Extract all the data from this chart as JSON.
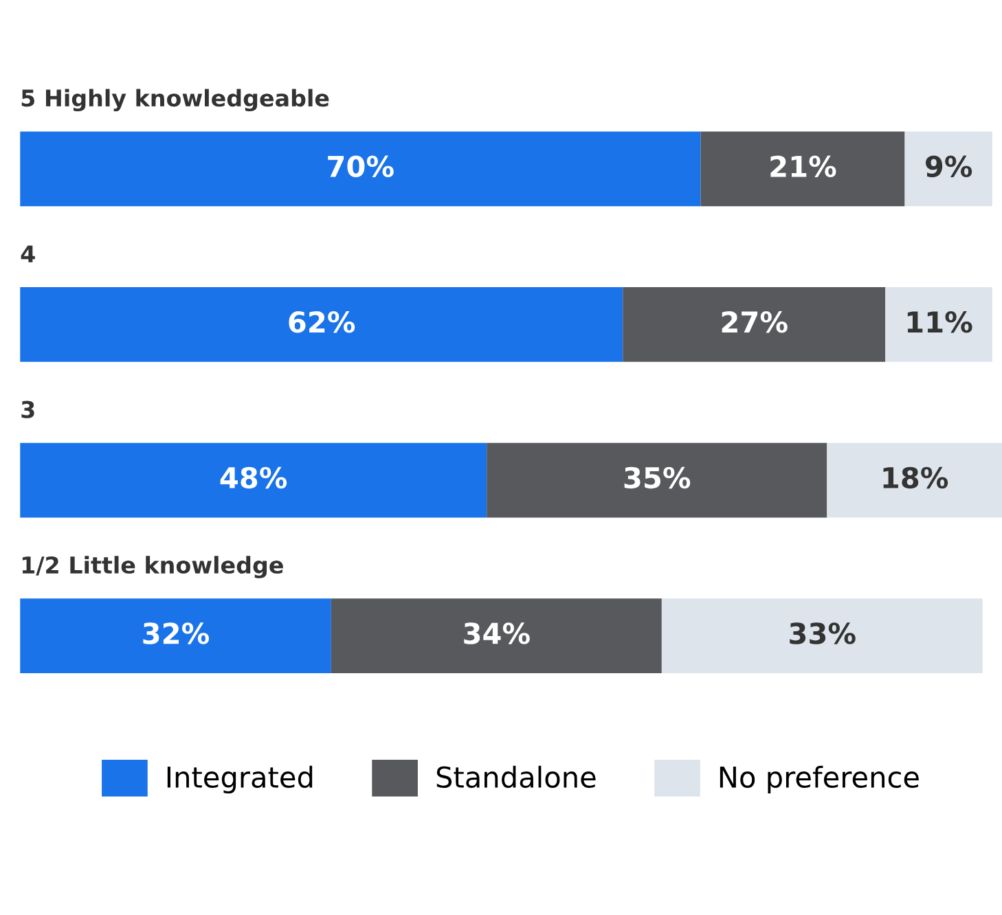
{
  "chart_data": {
    "type": "bar",
    "orientation": "horizontal",
    "stacked": true,
    "categories": [
      "5 Highly knowledgeable",
      "4",
      "3",
      "1/2 Little knowledge"
    ],
    "series": [
      {
        "name": "Integrated",
        "color": "#1a73e8",
        "values": [
          70,
          62,
          48,
          32
        ],
        "value_labels": [
          "70%",
          "62%",
          "48%",
          "32%"
        ]
      },
      {
        "name": "Standalone",
        "color": "#58595d",
        "values": [
          21,
          27,
          35,
          34
        ],
        "value_labels": [
          "21%",
          "27%",
          "35%",
          "34%"
        ]
      },
      {
        "name": "No preference",
        "color": "#dde4ec",
        "values": [
          9,
          11,
          18,
          33
        ],
        "value_labels": [
          "9%",
          "11%",
          "18%",
          "33%"
        ]
      }
    ],
    "legend": "bottom",
    "tick_labels": false,
    "grid": false
  }
}
